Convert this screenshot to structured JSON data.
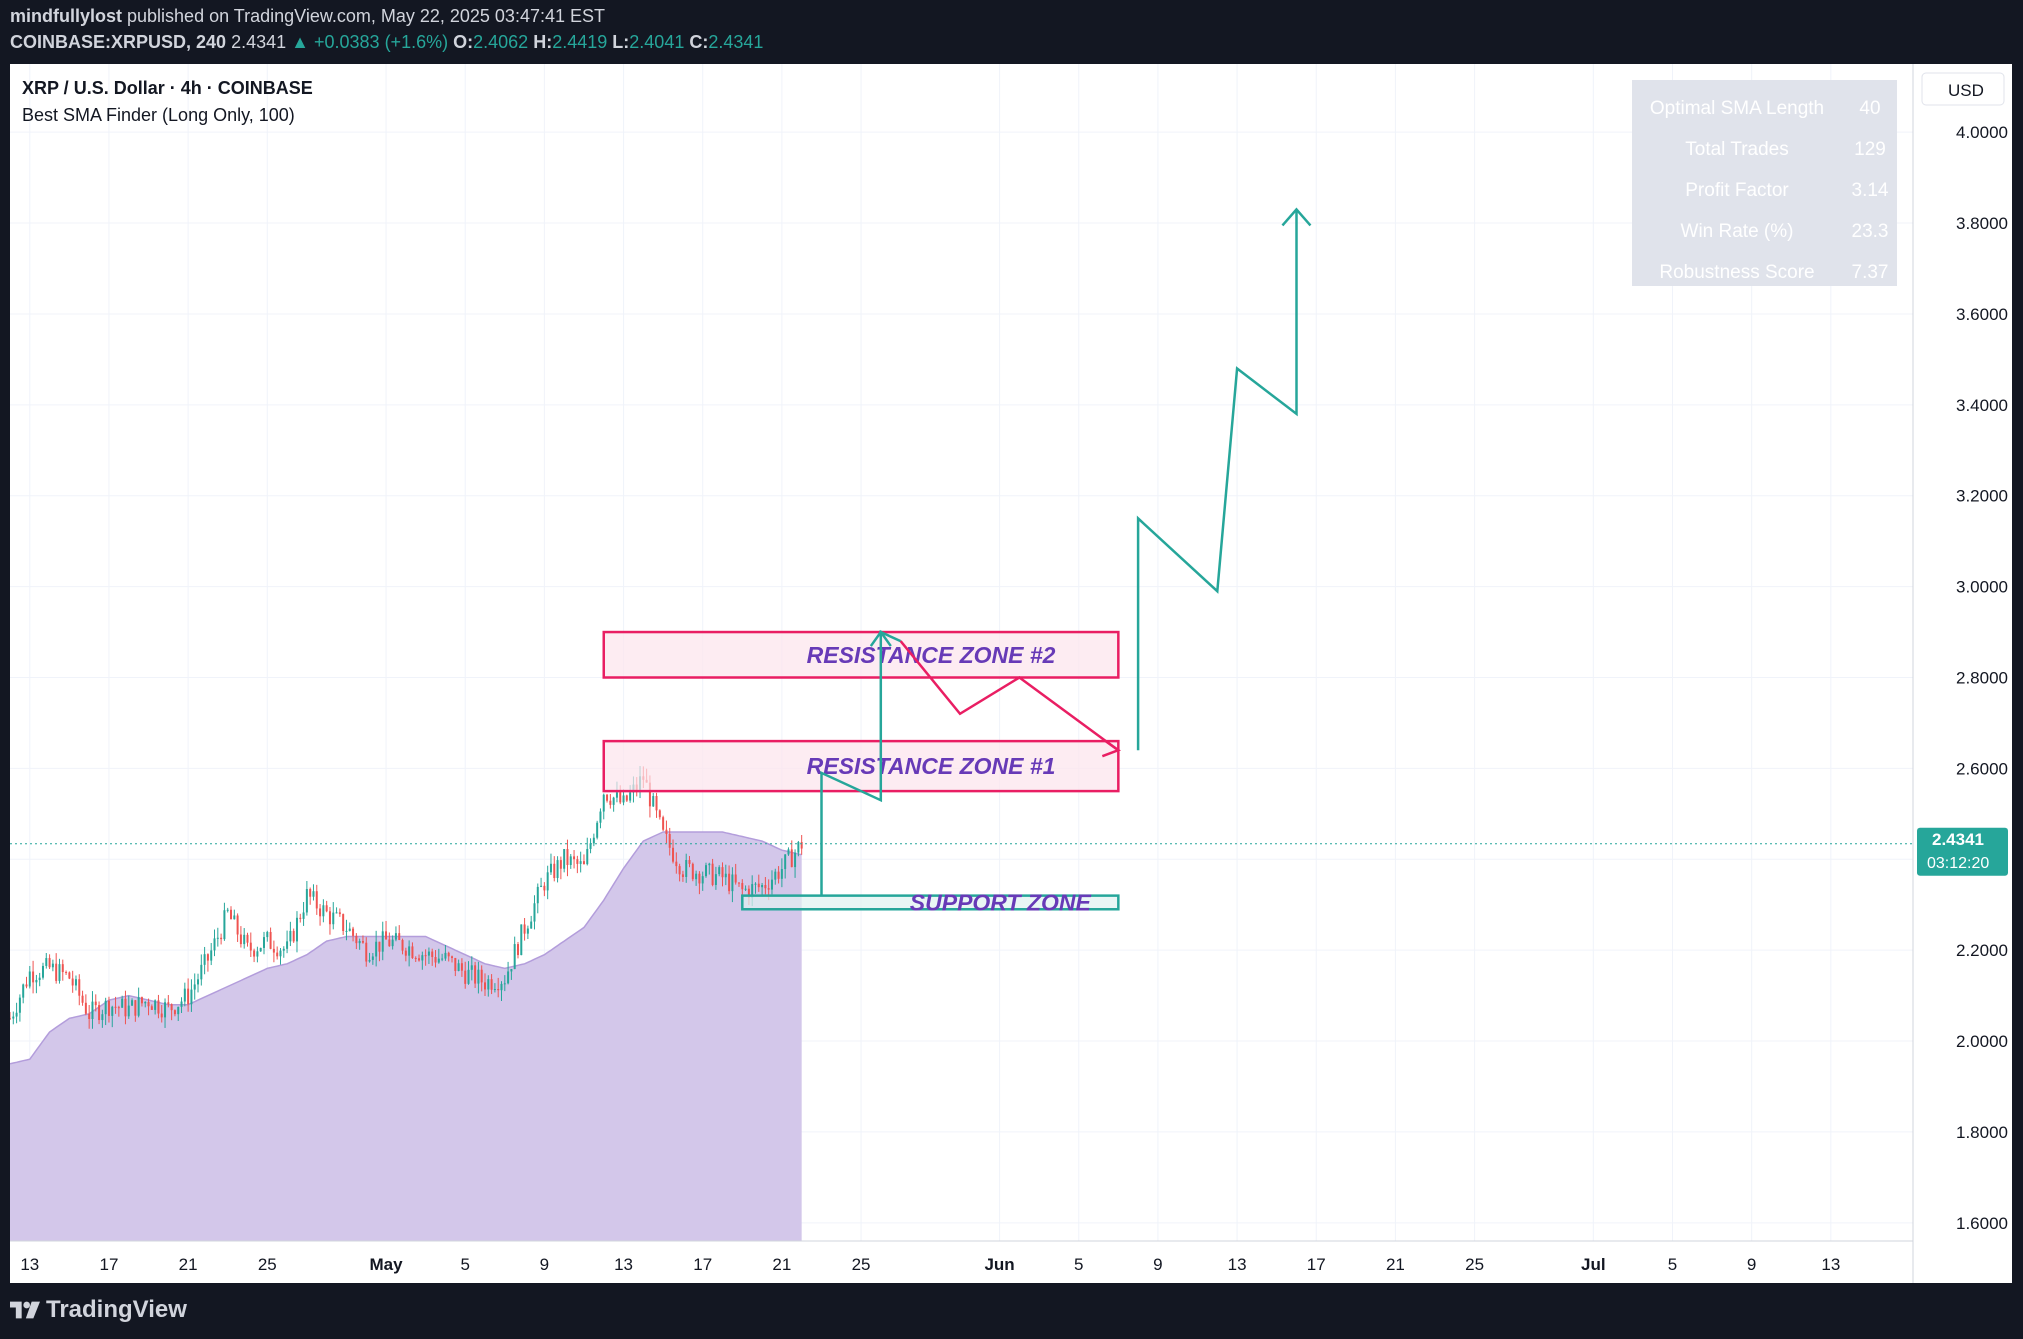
{
  "header": {
    "publisher": "mindfullylost",
    "published_text": "published on TradingView.com, May 22, 2025 03:47:41 EST",
    "symbol_line": "COINBASE:XRPUSD, 240",
    "last": "2.4341",
    "change": "+0.0383 (+1.6%)",
    "o_label": "O:",
    "o": "2.4062",
    "h_label": "H:",
    "h": "2.4419",
    "l_label": "L:",
    "l": "2.4041",
    "c_label": "C:",
    "c": "2.4341"
  },
  "legend": {
    "title": "XRP / U.S. Dollar · 4h · COINBASE",
    "indicator": "Best SMA Finder (Long Only, 100)"
  },
  "currency": "USD",
  "stats_table": [
    {
      "label": "Optimal SMA Length",
      "value": "40"
    },
    {
      "label": "Total Trades",
      "value": "129"
    },
    {
      "label": "Profit Factor",
      "value": "3.14"
    },
    {
      "label": "Win Rate (%)",
      "value": "23.3"
    },
    {
      "label": "Robustness Score",
      "value": "7.37"
    }
  ],
  "price_badge": {
    "price": "2.4341",
    "countdown": "03:12:20"
  },
  "zones": {
    "resistance2": "RESISTANCE ZONE #2",
    "resistance1": "RESISTANCE ZONE #1",
    "support": "SUPPORT  ZONE"
  },
  "footer": {
    "brand": "TradingView"
  },
  "colors": {
    "up": "#26a69a",
    "down": "#ef5350",
    "sma_fill": "#d1c4e9",
    "resistance": "#e91e63",
    "projection": "#26a69a",
    "zone_text": "#673ab7"
  },
  "chart_data": {
    "type": "candlestick",
    "ylim": [
      1.56,
      4.15
    ],
    "y_ticks": [
      1.6,
      1.8,
      2.0,
      2.2,
      2.4,
      2.6,
      2.8,
      3.0,
      3.2,
      3.4,
      3.6,
      3.8,
      4.0
    ],
    "y_tick_labels": [
      "1.6000",
      "1.8000",
      "2.0000",
      "2.2000",
      "2.4000",
      "2.6000",
      "2.8000",
      "3.0000",
      "3.2000",
      "3.4000",
      "3.6000",
      "3.8000",
      "4.0000"
    ],
    "x_start": "2025-04-12",
    "x_end": "2025-07-17",
    "x_ticks": [
      {
        "date": "2025-04-13",
        "label": "13"
      },
      {
        "date": "2025-04-17",
        "label": "17"
      },
      {
        "date": "2025-04-21",
        "label": "21"
      },
      {
        "date": "2025-04-25",
        "label": "25"
      },
      {
        "date": "2025-05-01",
        "label": "May"
      },
      {
        "date": "2025-05-05",
        "label": "5"
      },
      {
        "date": "2025-05-09",
        "label": "9"
      },
      {
        "date": "2025-05-13",
        "label": "13"
      },
      {
        "date": "2025-05-17",
        "label": "17"
      },
      {
        "date": "2025-05-21",
        "label": "21"
      },
      {
        "date": "2025-05-25",
        "label": "25"
      },
      {
        "date": "2025-06-01",
        "label": "Jun"
      },
      {
        "date": "2025-06-05",
        "label": "5"
      },
      {
        "date": "2025-06-09",
        "label": "9"
      },
      {
        "date": "2025-06-13",
        "label": "13"
      },
      {
        "date": "2025-06-17",
        "label": "17"
      },
      {
        "date": "2025-06-21",
        "label": "21"
      },
      {
        "date": "2025-06-25",
        "label": "25"
      },
      {
        "date": "2025-07-01",
        "label": "Jul"
      },
      {
        "date": "2025-07-05",
        "label": "5"
      },
      {
        "date": "2025-07-09",
        "label": "9"
      },
      {
        "date": "2025-07-13",
        "label": "13"
      }
    ],
    "price_path": [
      [
        "2025-04-12",
        2.05
      ],
      [
        "2025-04-13",
        2.15
      ],
      [
        "2025-04-14",
        2.16
      ],
      [
        "2025-04-15",
        2.14
      ],
      [
        "2025-04-16",
        2.06
      ],
      [
        "2025-04-17",
        2.08
      ],
      [
        "2025-04-18",
        2.07
      ],
      [
        "2025-04-19",
        2.09
      ],
      [
        "2025-04-20",
        2.07
      ],
      [
        "2025-04-21",
        2.1
      ],
      [
        "2025-04-22",
        2.18
      ],
      [
        "2025-04-23",
        2.28
      ],
      [
        "2025-04-24",
        2.2
      ],
      [
        "2025-04-25",
        2.22
      ],
      [
        "2025-04-26",
        2.2
      ],
      [
        "2025-04-27",
        2.32
      ],
      [
        "2025-04-28",
        2.28
      ],
      [
        "2025-04-29",
        2.25
      ],
      [
        "2025-04-30",
        2.2
      ],
      [
        "2025-05-01",
        2.22
      ],
      [
        "2025-05-02",
        2.21
      ],
      [
        "2025-05-03",
        2.19
      ],
      [
        "2025-05-04",
        2.18
      ],
      [
        "2025-05-05",
        2.15
      ],
      [
        "2025-05-06",
        2.13
      ],
      [
        "2025-05-07",
        2.14
      ],
      [
        "2025-05-08",
        2.25
      ],
      [
        "2025-05-09",
        2.35
      ],
      [
        "2025-05-10",
        2.4
      ],
      [
        "2025-05-11",
        2.38
      ],
      [
        "2025-05-12",
        2.55
      ],
      [
        "2025-05-13",
        2.52
      ],
      [
        "2025-05-14",
        2.58
      ],
      [
        "2025-05-15",
        2.45
      ],
      [
        "2025-05-16",
        2.38
      ],
      [
        "2025-05-17",
        2.37
      ],
      [
        "2025-05-18",
        2.36
      ],
      [
        "2025-05-19",
        2.33
      ],
      [
        "2025-05-20",
        2.34
      ],
      [
        "2025-05-21",
        2.38
      ],
      [
        "2025-05-22",
        2.4341
      ]
    ],
    "sma_path": [
      [
        "2025-04-12",
        1.95
      ],
      [
        "2025-04-13",
        1.96
      ],
      [
        "2025-04-14",
        2.02
      ],
      [
        "2025-04-15",
        2.05
      ],
      [
        "2025-04-16",
        2.06
      ],
      [
        "2025-04-17",
        2.09
      ],
      [
        "2025-04-18",
        2.1
      ],
      [
        "2025-04-19",
        2.09
      ],
      [
        "2025-04-20",
        2.08
      ],
      [
        "2025-04-21",
        2.08
      ],
      [
        "2025-04-22",
        2.1
      ],
      [
        "2025-04-23",
        2.12
      ],
      [
        "2025-04-24",
        2.14
      ],
      [
        "2025-04-25",
        2.16
      ],
      [
        "2025-04-26",
        2.17
      ],
      [
        "2025-04-27",
        2.19
      ],
      [
        "2025-04-28",
        2.22
      ],
      [
        "2025-04-29",
        2.23
      ],
      [
        "2025-04-30",
        2.23
      ],
      [
        "2025-05-01",
        2.23
      ],
      [
        "2025-05-02",
        2.23
      ],
      [
        "2025-05-03",
        2.23
      ],
      [
        "2025-05-04",
        2.21
      ],
      [
        "2025-05-05",
        2.19
      ],
      [
        "2025-05-06",
        2.17
      ],
      [
        "2025-05-07",
        2.16
      ],
      [
        "2025-05-08",
        2.17
      ],
      [
        "2025-05-09",
        2.19
      ],
      [
        "2025-05-10",
        2.22
      ],
      [
        "2025-05-11",
        2.25
      ],
      [
        "2025-05-12",
        2.31
      ],
      [
        "2025-05-13",
        2.38
      ],
      [
        "2025-05-14",
        2.44
      ],
      [
        "2025-05-15",
        2.46
      ],
      [
        "2025-05-16",
        2.46
      ],
      [
        "2025-05-17",
        2.46
      ],
      [
        "2025-05-18",
        2.46
      ],
      [
        "2025-05-19",
        2.45
      ],
      [
        "2025-05-20",
        2.44
      ],
      [
        "2025-05-21",
        2.42
      ],
      [
        "2025-05-22",
        2.41
      ]
    ],
    "zones": [
      {
        "name": "RESISTANCE ZONE #2",
        "x0": "2025-05-12",
        "x1": "2025-06-07",
        "y0": 2.8,
        "y1": 2.9
      },
      {
        "name": "RESISTANCE ZONE #1",
        "x0": "2025-05-12",
        "x1": "2025-06-07",
        "y0": 2.55,
        "y1": 2.66
      },
      {
        "name": "SUPPORT  ZONE",
        "x0": "2025-05-19",
        "x1": "2025-06-07",
        "y0": 2.29,
        "y1": 2.32
      }
    ],
    "projection_green_1": [
      [
        "2025-05-23",
        2.32
      ],
      [
        "2025-05-23",
        2.59
      ],
      [
        "2025-05-26",
        2.53
      ],
      [
        "2025-05-26",
        2.9
      ],
      [
        "2025-05-27",
        2.88
      ]
    ],
    "projection_red": [
      [
        "2025-05-27",
        2.88
      ],
      [
        "2025-05-30",
        2.72
      ],
      [
        "2025-06-02",
        2.8
      ],
      [
        "2025-06-07",
        2.64
      ],
      [
        "2025-05-12",
        2.64
      ]
    ],
    "projection_green_2": [
      [
        "2025-06-08",
        2.64
      ],
      [
        "2025-06-08",
        3.15
      ],
      [
        "2025-06-12",
        2.99
      ],
      [
        "2025-06-13",
        3.48
      ],
      [
        "2025-06-16",
        3.38
      ],
      [
        "2025-06-16",
        3.83
      ]
    ],
    "last_price": 2.4341
  }
}
